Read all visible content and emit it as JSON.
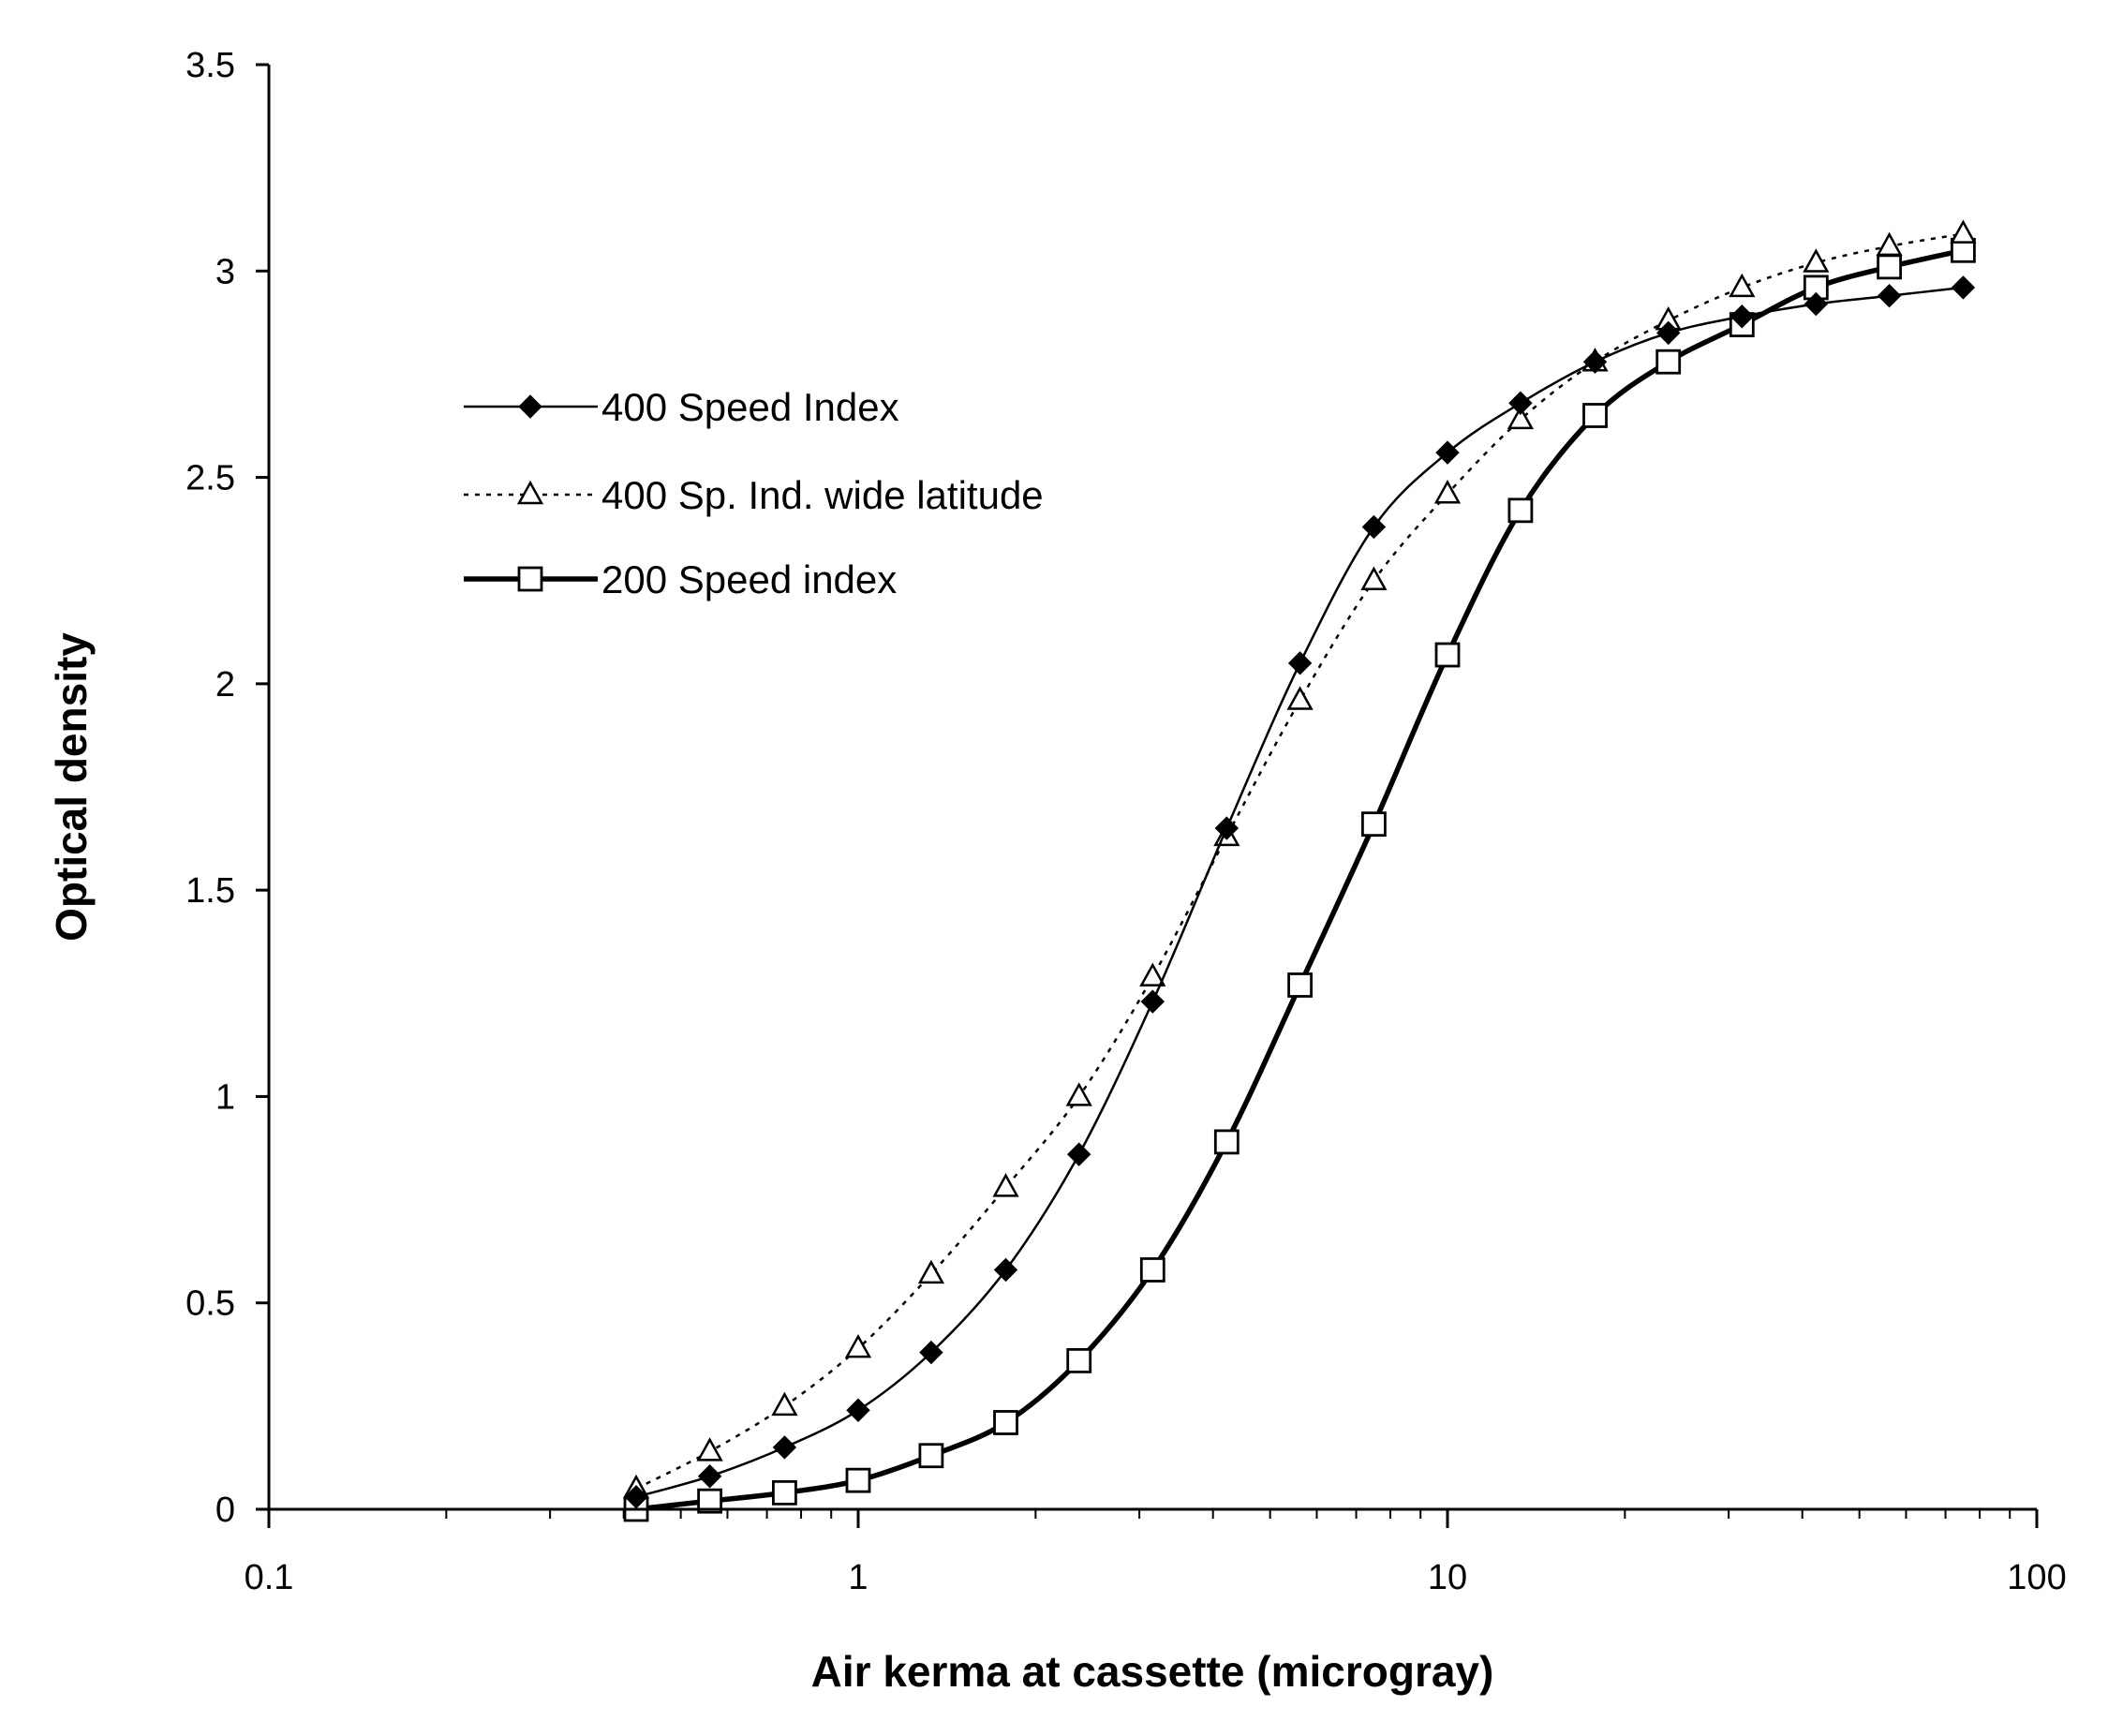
{
  "chart_data": {
    "type": "line",
    "xlabel": "Air kerma at cassette (microgray)",
    "ylabel": "Optical density",
    "xscale": "log",
    "xlim": [
      0.1,
      100
    ],
    "ylim": [
      0,
      3.5
    ],
    "x_ticks": [
      0.1,
      1,
      10,
      100
    ],
    "x_tick_labels": [
      "0.1",
      "1",
      "10",
      "100"
    ],
    "y_ticks": [
      0,
      0.5,
      1,
      1.5,
      2,
      2.5,
      3,
      3.5
    ],
    "y_tick_labels": [
      "0",
      "0.5",
      "1",
      "1.5",
      "2",
      "2.5",
      "3",
      "3.5"
    ],
    "grid": false,
    "legend_position": "upper-left",
    "x": [
      0.42,
      0.56,
      0.75,
      1.0,
      1.33,
      1.78,
      2.37,
      3.16,
      4.22,
      5.62,
      7.5,
      10.0,
      13.3,
      17.8,
      23.7,
      31.6,
      42.2,
      56.2,
      75.0
    ],
    "series": [
      {
        "name": "400 Speed Index",
        "style": "solid-thin",
        "marker": "filled-diamond",
        "values": [
          0.03,
          0.08,
          0.15,
          0.24,
          0.38,
          0.58,
          0.86,
          1.23,
          1.65,
          2.05,
          2.38,
          2.56,
          2.68,
          2.78,
          2.85,
          2.89,
          2.92,
          2.94,
          2.96
        ]
      },
      {
        "name": "400 Sp. Ind. wide latitude",
        "style": "dotted",
        "marker": "open-triangle",
        "values": [
          0.05,
          0.14,
          0.25,
          0.39,
          0.57,
          0.78,
          1.0,
          1.29,
          1.63,
          1.96,
          2.25,
          2.46,
          2.64,
          2.78,
          2.88,
          2.96,
          3.02,
          3.06,
          3.09
        ]
      },
      {
        "name": "200 Speed index",
        "style": "solid-thick",
        "marker": "open-square",
        "values": [
          0.0,
          0.02,
          0.04,
          0.07,
          0.13,
          0.21,
          0.36,
          0.58,
          0.89,
          1.27,
          1.66,
          2.07,
          2.42,
          2.65,
          2.78,
          2.87,
          2.96,
          3.01,
          3.05
        ]
      }
    ]
  }
}
